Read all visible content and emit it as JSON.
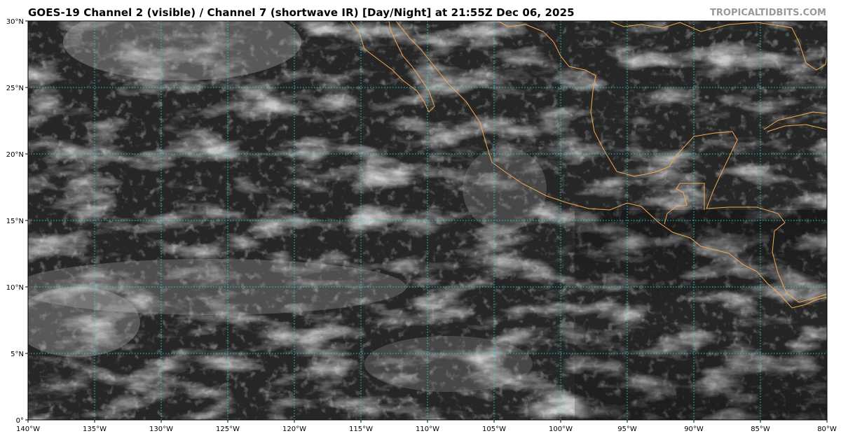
{
  "header": {
    "title": "GOES-19 Channel 2 (visible) / Channel 7 (shortwave IR) [Day/Night] at 21:55Z Dec 06, 2025",
    "watermark": "TROPICALTIDBITS.COM"
  },
  "map": {
    "lon_range": [
      -140,
      -80
    ],
    "lat_range": [
      0,
      30
    ],
    "lon_ticks": [
      -140,
      -135,
      -130,
      -125,
      -120,
      -115,
      -110,
      -105,
      -100,
      -95,
      -90,
      -85,
      -80
    ],
    "lat_ticks": [
      0,
      5,
      10,
      15,
      20,
      25,
      30
    ],
    "lon_labels": [
      "140°W",
      "135°W",
      "130°W",
      "125°W",
      "120°W",
      "115°W",
      "110°W",
      "105°W",
      "100°W",
      "95°W",
      "90°W",
      "85°W",
      "80°W"
    ],
    "lat_labels": [
      "0°",
      "5°N",
      "10°N",
      "15°N",
      "20°N",
      "25°N",
      "30°N"
    ],
    "colors": {
      "grid": "#22d3d3",
      "coastline": "#f4a850",
      "background": "#262626"
    }
  }
}
